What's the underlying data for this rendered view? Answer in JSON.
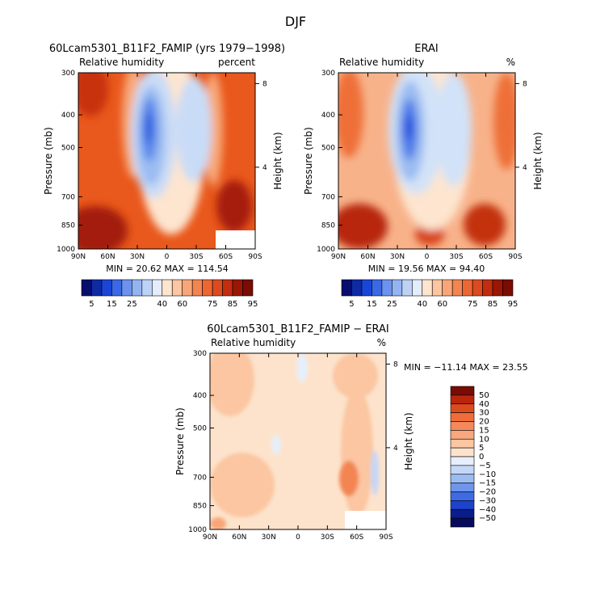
{
  "figure": {
    "title": "DJF"
  },
  "chart_data": [
    {
      "type": "heatmap",
      "title": "60Lcam5301_B11F2_FAMIP (yrs 1979−1998)",
      "subtitle_left": "Relative humidity",
      "subtitle_right": "percent",
      "xlabel": "",
      "ylabel": "Pressure (mb)",
      "ylabel_right": "Height (km)",
      "x_ticks": [
        "90N",
        "60N",
        "30N",
        "0",
        "30S",
        "60S",
        "90S"
      ],
      "y_ticks": [
        "300",
        "400",
        "500",
        "700",
        "850",
        "1000"
      ],
      "y_right_ticks": [
        "8",
        "4"
      ],
      "stats": "MIN =  20.62   MAX = 114.54",
      "contour_levels": [
        5,
        10,
        15,
        20,
        25,
        30,
        35,
        40,
        50,
        60,
        65,
        70,
        75,
        80,
        85,
        90,
        95
      ],
      "colorbar_labels": [
        "5",
        "15",
        "25",
        "40",
        "60",
        "75",
        "85",
        "95"
      ],
      "fields": {
        "base": "#e9581c",
        "upper_left": "#c83110",
        "low_left": "#a31a07",
        "low_right": "#a61c08",
        "dry_band": "#fde5cf",
        "dry_core_outer": "#c9dcf7",
        "dry_core_mid": "#9bbcf1",
        "dry_core_inner": "#5a88ea",
        "dry_core_min": "#2e5fe0"
      }
    },
    {
      "type": "heatmap",
      "title": "ERAI",
      "subtitle_left": "Relative humidity",
      "subtitle_right": "%",
      "xlabel": "",
      "ylabel": "Pressure (mb)",
      "ylabel_right": "Height (km)",
      "x_ticks": [
        "90N",
        "60N",
        "30N",
        "0",
        "30S",
        "60S",
        "90S"
      ],
      "y_ticks": [
        "300",
        "400",
        "500",
        "700",
        "850",
        "1000"
      ],
      "y_right_ticks": [
        "8",
        "4"
      ],
      "stats": "MIN =  19.56   MAX =  94.40",
      "contour_levels": [
        5,
        10,
        15,
        20,
        25,
        30,
        35,
        40,
        50,
        60,
        65,
        70,
        75,
        80,
        85,
        90,
        95
      ],
      "colorbar_labels": [
        "5",
        "15",
        "25",
        "40",
        "60",
        "75",
        "85",
        "95"
      ],
      "fields": {
        "base": "#f7a97a",
        "upper_left": "#ee7039",
        "low_left": "#b72508",
        "low_right": "#c33010",
        "dry_band": "#fde5cf",
        "dry_core_outer": "#d2e2f8",
        "dry_core_mid": "#9bbcf1",
        "dry_core_inner": "#4f7ce8",
        "dry_core_min": "#2350db"
      }
    },
    {
      "type": "heatmap",
      "title": "60Lcam5301_B11F2_FAMIP − ERAI",
      "subtitle_left": "Relative humidity",
      "subtitle_right": "%",
      "xlabel": "",
      "ylabel": "Pressure (mb)",
      "ylabel_right": "Height (km)",
      "x_ticks": [
        "90N",
        "60N",
        "30N",
        "0",
        "30S",
        "60S",
        "90S"
      ],
      "y_ticks": [
        "300",
        "400",
        "500",
        "700",
        "850",
        "1000"
      ],
      "y_right_ticks": [
        "8",
        "4"
      ],
      "stats": "MIN = −11.14    MAX =  23.55",
      "contour_levels": [
        -50,
        -40,
        -30,
        -20,
        -15,
        -10,
        -5,
        0,
        5,
        10,
        15,
        20,
        30,
        40,
        50
      ],
      "colorbar_labels": [
        "50",
        "40",
        "30",
        "20",
        "15",
        "10",
        "5",
        "0",
        "−5",
        "−10",
        "−15",
        "−20",
        "−30",
        "−40",
        "−50"
      ]
    }
  ],
  "colorbar_colors": {
    "abs": [
      "#080e6d",
      "#0f2aa5",
      "#1b45d6",
      "#3a68e6",
      "#6b92ee",
      "#94b3f3",
      "#bcd2f7",
      "#e3edfb",
      "#fde5cf",
      "#fbc6a1",
      "#f8a678",
      "#f38552",
      "#ec6733",
      "#dc4b1f",
      "#c22d10",
      "#9c1605",
      "#7a0c03"
    ],
    "diff": [
      "#7a0c03",
      "#b8260b",
      "#dc4b1f",
      "#ef6d3b",
      "#f5895a",
      "#f9a77e",
      "#fbc6a1",
      "#fde3cc",
      "#e6effb",
      "#c4d7f7",
      "#9bbcf1",
      "#6f95ec",
      "#3e6be4",
      "#1c43ca",
      "#0b1d8b",
      "#060c5b"
    ]
  }
}
